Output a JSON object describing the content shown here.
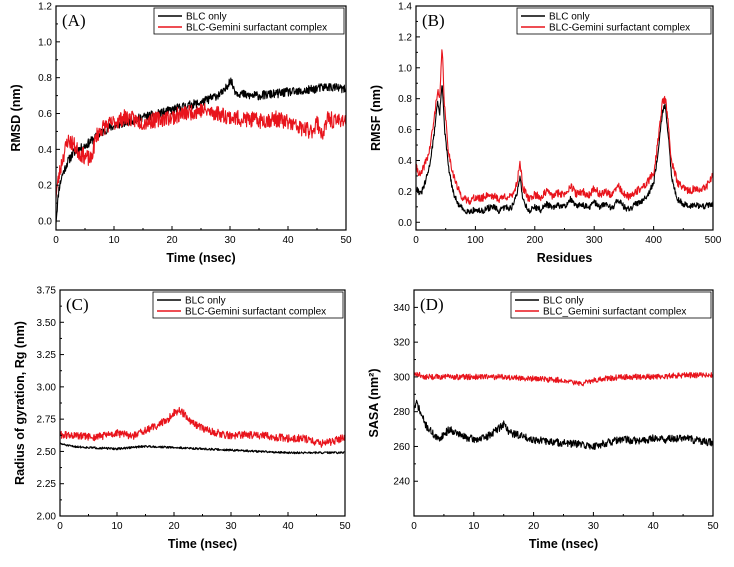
{
  "chart_data": [
    {
      "id": "A",
      "type": "line",
      "panel_label": "(A)",
      "xlabel": "Time (nsec)",
      "ylabel": "RMSD (nm)",
      "xlim": [
        0,
        50
      ],
      "ylim": [
        -0.05,
        1.2
      ],
      "xticks": [
        0,
        10,
        20,
        30,
        40,
        50
      ],
      "yticks": [
        0.0,
        0.2,
        0.4,
        0.6,
        0.8,
        1.0,
        1.2
      ],
      "ytick_labels": [
        "0.0",
        "0.2",
        "0.4",
        "0.6",
        "0.8",
        "1.0",
        "1.2"
      ],
      "legend_position": "top-right",
      "series": [
        {
          "name": "BLC only",
          "color": "#000000",
          "noise": 0.025,
          "seed": 11,
          "x": [
            0,
            0.5,
            1,
            2,
            3,
            4,
            5,
            7,
            9,
            12,
            15,
            18,
            20,
            22,
            25,
            27,
            29,
            30,
            31,
            33,
            35,
            38,
            40,
            42,
            45,
            47,
            49,
            50
          ],
          "y": [
            0.0,
            0.18,
            0.25,
            0.33,
            0.38,
            0.4,
            0.42,
            0.47,
            0.52,
            0.55,
            0.58,
            0.6,
            0.62,
            0.64,
            0.66,
            0.69,
            0.72,
            0.79,
            0.72,
            0.7,
            0.7,
            0.71,
            0.72,
            0.72,
            0.74,
            0.75,
            0.74,
            0.73
          ]
        },
        {
          "name": "BLC-Gemini surfactant complex",
          "color": "#e8141c",
          "noise": 0.045,
          "seed": 23,
          "x": [
            0,
            0.5,
            1,
            2,
            3,
            4,
            5,
            6,
            7,
            8,
            10,
            12,
            15,
            18,
            20,
            22,
            25,
            28,
            30,
            32,
            35,
            38,
            40,
            42,
            44,
            45,
            46,
            47,
            48,
            49,
            50
          ],
          "y": [
            0.15,
            0.25,
            0.33,
            0.45,
            0.43,
            0.38,
            0.36,
            0.34,
            0.48,
            0.52,
            0.55,
            0.58,
            0.55,
            0.57,
            0.58,
            0.6,
            0.62,
            0.6,
            0.58,
            0.57,
            0.56,
            0.57,
            0.55,
            0.52,
            0.5,
            0.55,
            0.48,
            0.58,
            0.55,
            0.57,
            0.56
          ]
        }
      ]
    },
    {
      "id": "B",
      "type": "line",
      "panel_label": "(B)",
      "xlabel": "Residues",
      "ylabel": "RMSF (nm)",
      "xlim": [
        0,
        500
      ],
      "ylim": [
        -0.05,
        1.4
      ],
      "xticks": [
        0,
        100,
        200,
        300,
        400,
        500
      ],
      "yticks": [
        0.0,
        0.2,
        0.4,
        0.6,
        0.8,
        1.0,
        1.2,
        1.4
      ],
      "ytick_labels": [
        "0.0",
        "0.2",
        "0.4",
        "0.6",
        "0.8",
        "1.0",
        "1.2",
        "1.4"
      ],
      "legend_position": "top-right",
      "series": [
        {
          "name": "BLC only",
          "color": "#000000",
          "noise": 0.02,
          "seed": 31,
          "x": [
            1,
            8,
            15,
            22,
            30,
            36,
            40,
            44,
            48,
            55,
            62,
            70,
            80,
            90,
            100,
            110,
            120,
            130,
            140,
            150,
            160,
            170,
            175,
            180,
            190,
            200,
            210,
            220,
            230,
            240,
            250,
            260,
            270,
            280,
            290,
            300,
            310,
            320,
            330,
            340,
            350,
            360,
            370,
            380,
            390,
            400,
            405,
            410,
            415,
            420,
            425,
            430,
            440,
            450,
            460,
            470,
            480,
            490,
            500
          ],
          "y": [
            0.22,
            0.18,
            0.25,
            0.35,
            0.55,
            0.78,
            0.7,
            0.92,
            0.6,
            0.35,
            0.2,
            0.12,
            0.08,
            0.07,
            0.08,
            0.07,
            0.09,
            0.1,
            0.07,
            0.1,
            0.09,
            0.18,
            0.3,
            0.15,
            0.07,
            0.1,
            0.08,
            0.12,
            0.09,
            0.11,
            0.1,
            0.15,
            0.1,
            0.12,
            0.09,
            0.13,
            0.1,
            0.12,
            0.09,
            0.15,
            0.1,
            0.08,
            0.12,
            0.14,
            0.18,
            0.25,
            0.38,
            0.55,
            0.72,
            0.75,
            0.55,
            0.3,
            0.15,
            0.12,
            0.1,
            0.12,
            0.1,
            0.11,
            0.12
          ]
        },
        {
          "name": "BLC-Gemini surfactant complex",
          "color": "#e8141c",
          "noise": 0.025,
          "seed": 41,
          "x": [
            1,
            8,
            15,
            22,
            30,
            36,
            40,
            44,
            48,
            55,
            62,
            70,
            80,
            90,
            100,
            110,
            120,
            130,
            140,
            150,
            160,
            170,
            175,
            180,
            190,
            200,
            210,
            220,
            230,
            240,
            250,
            260,
            270,
            280,
            290,
            300,
            310,
            320,
            330,
            340,
            350,
            360,
            370,
            380,
            390,
            400,
            405,
            410,
            415,
            420,
            425,
            430,
            440,
            450,
            460,
            470,
            480,
            490,
            500
          ],
          "y": [
            0.35,
            0.3,
            0.38,
            0.45,
            0.65,
            0.85,
            0.8,
            1.14,
            0.75,
            0.45,
            0.32,
            0.22,
            0.15,
            0.14,
            0.16,
            0.15,
            0.18,
            0.17,
            0.15,
            0.17,
            0.16,
            0.25,
            0.4,
            0.22,
            0.15,
            0.18,
            0.16,
            0.2,
            0.17,
            0.19,
            0.18,
            0.24,
            0.18,
            0.2,
            0.17,
            0.22,
            0.18,
            0.2,
            0.17,
            0.24,
            0.18,
            0.16,
            0.2,
            0.22,
            0.26,
            0.32,
            0.45,
            0.62,
            0.78,
            0.8,
            0.62,
            0.4,
            0.26,
            0.22,
            0.2,
            0.22,
            0.2,
            0.24,
            0.3
          ]
        }
      ]
    },
    {
      "id": "C",
      "type": "line",
      "panel_label": "(C)",
      "xlabel": "Time (nsec)",
      "ylabel": "Radius of gyration, Rg (nm)",
      "xlim": [
        0,
        50
      ],
      "ylim": [
        2.0,
        3.75
      ],
      "xticks": [
        0,
        10,
        20,
        30,
        40,
        50
      ],
      "yticks": [
        2.0,
        2.25,
        2.5,
        2.75,
        3.0,
        3.25,
        3.5,
        3.75
      ],
      "ytick_labels": [
        "2.00",
        "2.25",
        "2.50",
        "2.75",
        "3.00",
        "3.25",
        "3.50",
        "3.75"
      ],
      "legend_position": "top-right",
      "series": [
        {
          "name": "BLC only",
          "color": "#000000",
          "noise": 0.008,
          "seed": 51,
          "x": [
            0,
            2,
            5,
            10,
            15,
            20,
            25,
            30,
            35,
            40,
            45,
            50
          ],
          "y": [
            2.56,
            2.54,
            2.53,
            2.52,
            2.54,
            2.53,
            2.52,
            2.51,
            2.5,
            2.49,
            2.49,
            2.49
          ]
        },
        {
          "name": "BLC-Gemini surfactant complex",
          "color": "#e8141c",
          "noise": 0.03,
          "seed": 61,
          "x": [
            0,
            3,
            6,
            10,
            13,
            15,
            17,
            19,
            20,
            21,
            22,
            23,
            25,
            27,
            30,
            33,
            36,
            40,
            43,
            46,
            48,
            50
          ],
          "y": [
            2.63,
            2.62,
            2.61,
            2.64,
            2.62,
            2.66,
            2.7,
            2.75,
            2.8,
            2.82,
            2.78,
            2.72,
            2.68,
            2.65,
            2.62,
            2.63,
            2.62,
            2.6,
            2.6,
            2.56,
            2.58,
            2.61
          ]
        }
      ]
    },
    {
      "id": "D",
      "type": "line",
      "panel_label": "(D)",
      "xlabel": "Time (nsec)",
      "ylabel": "SASA (nm²)",
      "xlim": [
        0,
        50
      ],
      "ylim": [
        220,
        350
      ],
      "xticks": [
        0,
        10,
        20,
        30,
        40,
        50
      ],
      "yticks": [
        240,
        260,
        280,
        300,
        320,
        340
      ],
      "ytick_labels": [
        "240",
        "260",
        "280",
        "300",
        "320",
        "340"
      ],
      "legend_position": "top-right",
      "series": [
        {
          "name": "BLC only",
          "color": "#000000",
          "noise": 2.2,
          "seed": 71,
          "x": [
            0,
            0.5,
            1,
            2,
            3,
            4,
            6,
            8,
            10,
            12,
            14,
            15,
            16,
            18,
            20,
            22,
            25,
            28,
            30,
            32,
            35,
            38,
            40,
            42,
            45,
            48,
            50
          ],
          "y": [
            282,
            285,
            280,
            272,
            268,
            264,
            270,
            266,
            264,
            265,
            270,
            273,
            268,
            266,
            264,
            263,
            262,
            261,
            260,
            262,
            264,
            263,
            265,
            264,
            265,
            263,
            262
          ]
        },
        {
          "name": "BLC_Gemini surfactant complex",
          "color": "#e8141c",
          "noise": 1.6,
          "seed": 81,
          "x": [
            0,
            2,
            5,
            10,
            15,
            20,
            25,
            28,
            30,
            32,
            35,
            40,
            45,
            50
          ],
          "y": [
            302,
            300,
            300,
            300,
            300,
            299,
            298,
            296,
            298,
            299,
            300,
            300,
            301,
            301
          ]
        }
      ]
    }
  ]
}
